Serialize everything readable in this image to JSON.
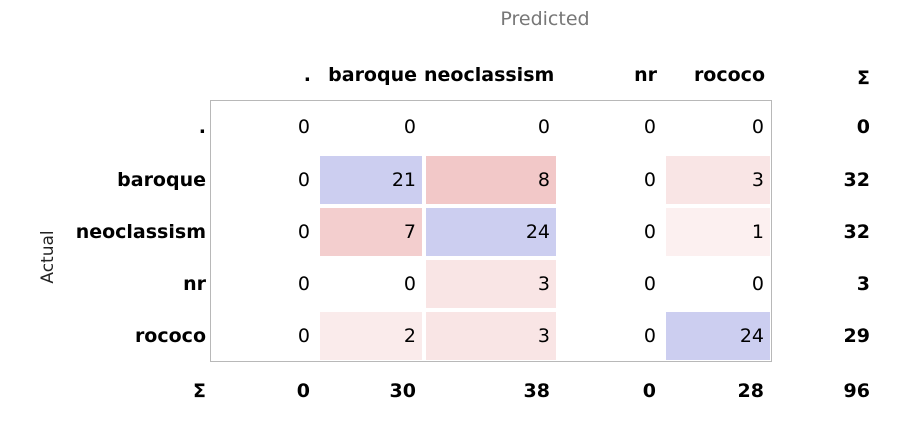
{
  "chart_data": {
    "type": "heatmap",
    "title": "",
    "xlabel": "Predicted",
    "ylabel": "Actual",
    "columns": [
      ".",
      "baroque",
      "neoclassism",
      "nr",
      "rococo"
    ],
    "rows": [
      ".",
      "baroque",
      "neoclassism",
      "nr",
      "rococo"
    ],
    "values": [
      [
        0,
        0,
        0,
        0,
        0
      ],
      [
        0,
        21,
        8,
        0,
        3
      ],
      [
        0,
        7,
        24,
        0,
        1
      ],
      [
        0,
        0,
        3,
        0,
        0
      ],
      [
        0,
        2,
        3,
        0,
        24
      ]
    ],
    "row_totals": [
      0,
      32,
      32,
      3,
      29
    ],
    "col_totals": [
      0,
      30,
      38,
      0,
      28
    ],
    "grand_total": 96,
    "sum_symbol": "Σ",
    "colors": {
      "correct": "#cccef0",
      "error_max": "#f2c8c8",
      "error_min": "#fdf6f6",
      "axis_title": "#777777"
    }
  }
}
